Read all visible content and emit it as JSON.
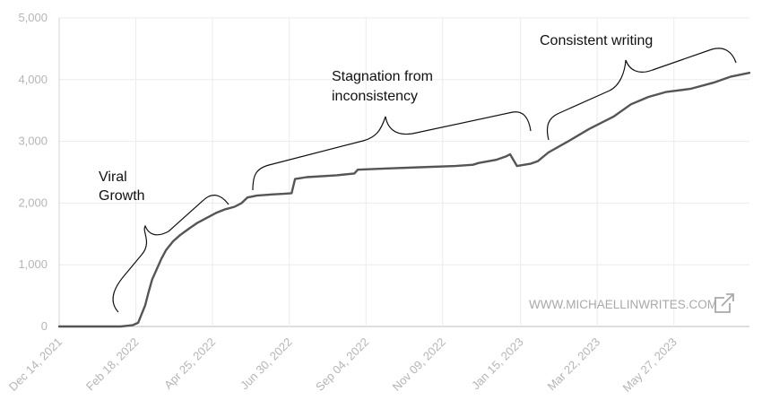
{
  "chart_data": {
    "type": "line",
    "title": "",
    "xlabel": "",
    "ylabel": "",
    "x_ticks": [
      "Dec 14, 2021",
      "Feb 18, 2022",
      "Apr 25, 2022",
      "Jun 30, 2022",
      "Sep 04, 2022",
      "Nov 09, 2022",
      "Jan 15, 2023",
      "Mar 22, 2023",
      "May 27, 2023"
    ],
    "y_ticks": [
      "0",
      "1,000",
      "2,000",
      "3,000",
      "4,000",
      "5,000"
    ],
    "xlim": [
      "2021-12-14",
      "2023-07-31"
    ],
    "ylim": [
      0,
      5000
    ],
    "grid": true,
    "color": "#555555",
    "series": [
      {
        "x": [
          "2021-12-14",
          "2022-02-05",
          "2022-02-15",
          "2022-02-20",
          "2022-02-23",
          "2022-02-26",
          "2022-03-01",
          "2022-03-04",
          "2022-03-08",
          "2022-03-12",
          "2022-03-16",
          "2022-03-22",
          "2022-03-28",
          "2022-04-05",
          "2022-04-12",
          "2022-04-20",
          "2022-04-28",
          "2022-05-06",
          "2022-05-14",
          "2022-05-20",
          "2022-05-25",
          "2022-06-02",
          "2022-06-15",
          "2022-06-25",
          "2022-07-02",
          "2022-07-05",
          "2022-07-15",
          "2022-08-10",
          "2022-08-25",
          "2022-08-28",
          "2022-09-20",
          "2022-10-20",
          "2022-11-20",
          "2022-12-05",
          "2022-12-10",
          "2022-12-25",
          "2023-01-03",
          "2023-01-06",
          "2023-01-12",
          "2023-01-24",
          "2023-01-30",
          "2023-02-08",
          "2023-02-25",
          "2023-03-15",
          "2023-04-05",
          "2023-04-20",
          "2023-05-05",
          "2023-05-20",
          "2023-06-10",
          "2023-06-30",
          "2023-07-15",
          "2023-07-31"
        ],
        "y": [
          0,
          0,
          20,
          60,
          200,
          340,
          560,
          760,
          930,
          1100,
          1240,
          1380,
          1480,
          1590,
          1680,
          1760,
          1840,
          1900,
          1940,
          2000,
          2090,
          2120,
          2140,
          2150,
          2160,
          2390,
          2420,
          2450,
          2480,
          2540,
          2560,
          2580,
          2600,
          2620,
          2650,
          2700,
          2760,
          2790,
          2600,
          2640,
          2680,
          2820,
          3000,
          3200,
          3400,
          3600,
          3720,
          3800,
          3850,
          3950,
          4050,
          4110
        ]
      }
    ]
  },
  "annotations": [
    {
      "lines": [
        "Viral",
        "Growth"
      ]
    },
    {
      "lines": [
        "Stagnation from",
        "inconsistency"
      ]
    },
    {
      "lines": [
        "Consistent writing"
      ]
    }
  ],
  "watermark": "WWW.MICHAELLINWRITES.COM",
  "watermark_icon": "external-link-icon"
}
